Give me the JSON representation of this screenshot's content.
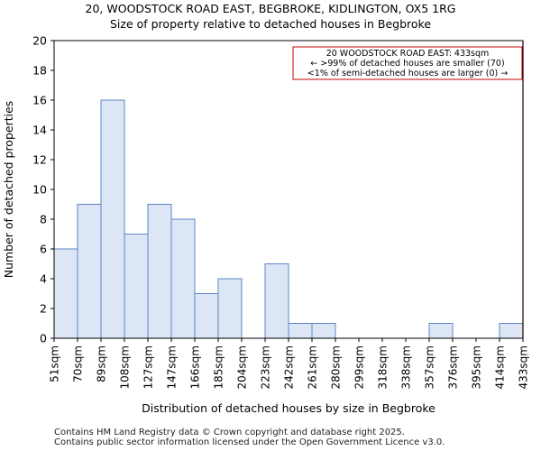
{
  "header": {
    "title": "20, WOODSTOCK ROAD EAST, BEGBROKE, KIDLINGTON, OX5 1RG",
    "subtitle": "Size of property relative to detached houses in Begbroke"
  },
  "footer": {
    "line1": "Contains HM Land Registry data © Crown copyright and database right 2025.",
    "line2": "Contains public sector information licensed under the Open Government Licence v3.0."
  },
  "chart_data": {
    "type": "bar",
    "title": "20, WOODSTOCK ROAD EAST, BEGBROKE, KIDLINGTON, OX5 1RG",
    "subtitle": "Size of property relative to detached houses in Begbroke",
    "xlabel": "Distribution of detached houses by size in Begbroke",
    "ylabel": "Number of detached properties",
    "ylim": [
      0,
      20
    ],
    "yticks": [
      0,
      2,
      4,
      6,
      8,
      10,
      12,
      14,
      16,
      18,
      20
    ],
    "x_tick_labels": [
      "51sqm",
      "70sqm",
      "89sqm",
      "108sqm",
      "127sqm",
      "147sqm",
      "166sqm",
      "185sqm",
      "204sqm",
      "223sqm",
      "242sqm",
      "261sqm",
      "280sqm",
      "299sqm",
      "318sqm",
      "338sqm",
      "357sqm",
      "376sqm",
      "395sqm",
      "414sqm",
      "433sqm"
    ],
    "values": [
      6,
      9,
      16,
      7,
      9,
      8,
      3,
      4,
      0,
      5,
      1,
      1,
      0,
      0,
      0,
      0,
      1,
      0,
      0,
      1
    ],
    "bar_color": "#dce6f4",
    "bar_edge_color": "#5b87c7",
    "marker": {
      "bin_index": 20,
      "color": "#c00000"
    },
    "annotation": {
      "line1": "20 WOODSTOCK ROAD EAST: 433sqm",
      "line2": "← >99% of detached houses are smaller (70)",
      "line3": "<1% of semi-detached houses are larger (0) →"
    }
  }
}
